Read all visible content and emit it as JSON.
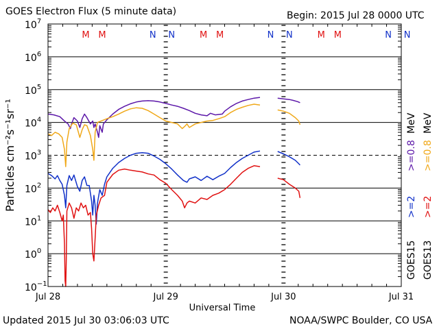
{
  "header": {
    "title": "GOES Electron Flux (5 minute data)",
    "begin": "Begin: 2015 Jul 28 0000 UTC"
  },
  "footer": {
    "updated": "Updated 2015 Jul 30 03:06:03 UTC",
    "credit": "NOAA/SWPC Boulder, CO USA"
  },
  "colors": {
    "ge2_goes15": "#5b16a8",
    "ge08_goes15": "#f0a818",
    "ge2_goes13": "#1030c8",
    "ge08_goes13": "#e01010",
    "marker_m": "#e01010",
    "marker_n": "#1030c8"
  },
  "chart_data": {
    "type": "line",
    "title": "GOES Electron Flux (5 minute data)",
    "xlabel": "Universal Time",
    "ylabel": "Particles cm⁻²s⁻¹sr⁻¹",
    "y_scale": "log",
    "ylim": [
      0.1,
      10000000
    ],
    "xlim_days": [
      0,
      3
    ],
    "x_ticks": [
      {
        "day": 0,
        "label": "Jul 28"
      },
      {
        "day": 1,
        "label": "Jul 29"
      },
      {
        "day": 2,
        "label": "Jul 30"
      },
      {
        "day": 3,
        "label": "Jul 31"
      }
    ],
    "y_ticks": [
      {
        "value": 0.1,
        "base": "10",
        "exp": "−1"
      },
      {
        "value": 1,
        "base": "10",
        "exp": "0"
      },
      {
        "value": 10,
        "base": "10",
        "exp": "1"
      },
      {
        "value": 100,
        "base": "10",
        "exp": "2"
      },
      {
        "value": 1000,
        "base": "10",
        "exp": "3"
      },
      {
        "value": 10000,
        "base": "10",
        "exp": "4"
      },
      {
        "value": 100000,
        "base": "10",
        "exp": "5"
      },
      {
        "value": 1000000,
        "base": "10",
        "exp": "6"
      },
      {
        "value": 10000000,
        "base": "10",
        "exp": "7"
      }
    ],
    "threshold_line": 1000,
    "local_noon_markers": [
      {
        "day": 0.32,
        "label": "M",
        "colorKey": "marker_m"
      },
      {
        "day": 0.46,
        "label": "M",
        "colorKey": "marker_m"
      },
      {
        "day": 0.89,
        "label": "N",
        "colorKey": "marker_n"
      },
      {
        "day": 1.05,
        "label": "N",
        "colorKey": "marker_n"
      },
      {
        "day": 1.32,
        "label": "M",
        "colorKey": "marker_m"
      },
      {
        "day": 1.46,
        "label": "M",
        "colorKey": "marker_m"
      },
      {
        "day": 1.89,
        "label": "N",
        "colorKey": "marker_n"
      },
      {
        "day": 2.05,
        "label": "N",
        "colorKey": "marker_n"
      },
      {
        "day": 2.32,
        "label": "M",
        "colorKey": "marker_m"
      },
      {
        "day": 2.46,
        "label": "M",
        "colorKey": "marker_m"
      },
      {
        "day": 2.89,
        "label": "N",
        "colorKey": "marker_n"
      },
      {
        "day": 3.05,
        "label": "N",
        "colorKey": "marker_n"
      }
    ],
    "legend": {
      "satellite_15": "GOES15",
      "satellite_13": "GOES13",
      "ge2_label": ">=2",
      "ge08_label": ">=0.8",
      "unit": "MeV"
    },
    "series": [
      {
        "name": ">=0.8 MeV GOES15",
        "colorKey": "ge2_goes15",
        "segments": [
          [
            [
              0.0,
              18000
            ],
            [
              0.05,
              17000
            ],
            [
              0.1,
              15000
            ],
            [
              0.14,
              11000
            ],
            [
              0.17,
              9000
            ],
            [
              0.19,
              6500
            ],
            [
              0.2,
              9000
            ],
            [
              0.22,
              14000
            ],
            [
              0.25,
              11000
            ],
            [
              0.27,
              7000
            ],
            [
              0.29,
              13000
            ],
            [
              0.31,
              18000
            ],
            [
              0.33,
              14000
            ],
            [
              0.36,
              9000
            ],
            [
              0.38,
              11000
            ],
            [
              0.39,
              7000
            ],
            [
              0.4,
              9000
            ],
            [
              0.42,
              5000
            ],
            [
              0.43,
              3500
            ],
            [
              0.44,
              8000
            ],
            [
              0.46,
              5000
            ],
            [
              0.47,
              9000
            ],
            [
              0.5,
              12000
            ],
            [
              0.55,
              18000
            ],
            [
              0.6,
              25000
            ],
            [
              0.65,
              31000
            ],
            [
              0.7,
              37000
            ],
            [
              0.75,
              42000
            ],
            [
              0.8,
              45000
            ],
            [
              0.85,
              46000
            ],
            [
              0.9,
              45000
            ],
            [
              0.95,
              42000
            ],
            [
              1.0,
              38000
            ],
            [
              1.05,
              34000
            ],
            [
              1.1,
              31000
            ],
            [
              1.15,
              27000
            ],
            [
              1.2,
              23000
            ],
            [
              1.25,
              19000
            ],
            [
              1.3,
              17000
            ],
            [
              1.35,
              16000
            ],
            [
              1.38,
              19000
            ],
            [
              1.42,
              17000
            ],
            [
              1.48,
              18000
            ],
            [
              1.5,
              22000
            ],
            [
              1.55,
              30000
            ],
            [
              1.6,
              38000
            ],
            [
              1.65,
              45000
            ],
            [
              1.7,
              50000
            ],
            [
              1.75,
              55000
            ],
            [
              1.8,
              58000
            ]
          ],
          [
            [
              1.95,
              55000
            ],
            [
              2.0,
              52000
            ],
            [
              2.05,
              50000
            ],
            [
              2.08,
              47000
            ],
            [
              2.12,
              43000
            ],
            [
              2.14,
              40000
            ]
          ]
        ]
      },
      {
        "name": ">=0.8 MeV GOES13",
        "colorKey": "ge08_goes15",
        "segments": [
          [
            [
              0.0,
              4500
            ],
            [
              0.03,
              4000
            ],
            [
              0.06,
              5000
            ],
            [
              0.09,
              4500
            ],
            [
              0.12,
              3500
            ],
            [
              0.14,
              1500
            ],
            [
              0.15,
              450
            ],
            [
              0.16,
              2500
            ],
            [
              0.18,
              6500
            ],
            [
              0.21,
              9500
            ],
            [
              0.24,
              8500
            ],
            [
              0.27,
              3500
            ],
            [
              0.29,
              6000
            ],
            [
              0.31,
              8500
            ],
            [
              0.33,
              8000
            ],
            [
              0.36,
              4000
            ],
            [
              0.38,
              1500
            ],
            [
              0.39,
              700
            ],
            [
              0.4,
              5000
            ],
            [
              0.42,
              10000
            ],
            [
              0.45,
              11000
            ],
            [
              0.5,
              13000
            ],
            [
              0.55,
              15000
            ],
            [
              0.6,
              18000
            ],
            [
              0.65,
              22000
            ],
            [
              0.7,
              26000
            ],
            [
              0.75,
              28000
            ],
            [
              0.8,
              27000
            ],
            [
              0.85,
              23000
            ],
            [
              0.9,
              18000
            ],
            [
              0.95,
              14000
            ],
            [
              1.0,
              11000
            ],
            [
              1.05,
              10000
            ],
            [
              1.1,
              9000
            ],
            [
              1.14,
              6500
            ],
            [
              1.16,
              7500
            ],
            [
              1.18,
              9000
            ],
            [
              1.2,
              7000
            ],
            [
              1.25,
              9000
            ],
            [
              1.3,
              10000
            ],
            [
              1.35,
              11000
            ],
            [
              1.4,
              11500
            ],
            [
              1.45,
              13000
            ],
            [
              1.5,
              15000
            ],
            [
              1.55,
              20000
            ],
            [
              1.6,
              25000
            ],
            [
              1.65,
              29000
            ],
            [
              1.7,
              33000
            ],
            [
              1.75,
              36000
            ],
            [
              1.8,
              34000
            ]
          ],
          [
            [
              1.95,
              24000
            ],
            [
              2.0,
              22000
            ],
            [
              2.05,
              19000
            ],
            [
              2.1,
              14000
            ],
            [
              2.13,
              11000
            ],
            [
              2.14,
              8500
            ]
          ]
        ]
      },
      {
        "name": ">=2 MeV GOES15",
        "colorKey": "ge2_goes13",
        "segments": [
          [
            [
              0.0,
              280
            ],
            [
              0.03,
              240
            ],
            [
              0.06,
              190
            ],
            [
              0.08,
              240
            ],
            [
              0.1,
              170
            ],
            [
              0.12,
              130
            ],
            [
              0.14,
              60
            ],
            [
              0.15,
              25
            ],
            [
              0.16,
              120
            ],
            [
              0.18,
              240
            ],
            [
              0.2,
              170
            ],
            [
              0.22,
              250
            ],
            [
              0.25,
              110
            ],
            [
              0.27,
              80
            ],
            [
              0.29,
              170
            ],
            [
              0.31,
              220
            ],
            [
              0.33,
              120
            ],
            [
              0.35,
              120
            ],
            [
              0.37,
              40
            ],
            [
              0.38,
              15
            ],
            [
              0.39,
              60
            ],
            [
              0.4,
              30
            ],
            [
              0.41,
              8
            ],
            [
              0.42,
              35
            ],
            [
              0.44,
              90
            ],
            [
              0.46,
              60
            ],
            [
              0.48,
              130
            ],
            [
              0.5,
              220
            ],
            [
              0.55,
              400
            ],
            [
              0.6,
              600
            ],
            [
              0.65,
              800
            ],
            [
              0.7,
              1000
            ],
            [
              0.75,
              1150
            ],
            [
              0.8,
              1200
            ],
            [
              0.85,
              1150
            ],
            [
              0.9,
              950
            ],
            [
              0.95,
              750
            ],
            [
              1.0,
              550
            ],
            [
              1.05,
              380
            ],
            [
              1.1,
              250
            ],
            [
              1.15,
              170
            ],
            [
              1.18,
              150
            ],
            [
              1.2,
              190
            ],
            [
              1.25,
              220
            ],
            [
              1.3,
              170
            ],
            [
              1.35,
              230
            ],
            [
              1.4,
              180
            ],
            [
              1.45,
              230
            ],
            [
              1.5,
              280
            ],
            [
              1.55,
              420
            ],
            [
              1.6,
              600
            ],
            [
              1.65,
              800
            ],
            [
              1.7,
              1000
            ],
            [
              1.75,
              1250
            ],
            [
              1.8,
              1350
            ]
          ],
          [
            [
              1.95,
              1300
            ],
            [
              2.0,
              1100
            ],
            [
              2.05,
              900
            ],
            [
              2.1,
              700
            ],
            [
              2.13,
              550
            ],
            [
              2.14,
              500
            ]
          ]
        ]
      },
      {
        "name": ">=2 MeV GOES13",
        "colorKey": "ge08_goes13",
        "segments": [
          [
            [
              0.0,
              22
            ],
            [
              0.02,
              18
            ],
            [
              0.04,
              25
            ],
            [
              0.06,
              20
            ],
            [
              0.08,
              30
            ],
            [
              0.1,
              18
            ],
            [
              0.12,
              10
            ],
            [
              0.13,
              15
            ],
            [
              0.14,
              2
            ],
            [
              0.145,
              0.15
            ],
            [
              0.15,
              0.1
            ],
            [
              0.155,
              0.6
            ],
            [
              0.16,
              20
            ],
            [
              0.18,
              35
            ],
            [
              0.2,
              25
            ],
            [
              0.22,
              12
            ],
            [
              0.24,
              25
            ],
            [
              0.26,
              20
            ],
            [
              0.28,
              35
            ],
            [
              0.3,
              25
            ],
            [
              0.32,
              30
            ],
            [
              0.34,
              15
            ],
            [
              0.36,
              18
            ],
            [
              0.37,
              6
            ],
            [
              0.38,
              1
            ],
            [
              0.39,
              0.6
            ],
            [
              0.4,
              3
            ],
            [
              0.41,
              15
            ],
            [
              0.43,
              30
            ],
            [
              0.45,
              50
            ],
            [
              0.48,
              60
            ],
            [
              0.5,
              150
            ],
            [
              0.55,
              260
            ],
            [
              0.6,
              350
            ],
            [
              0.65,
              380
            ],
            [
              0.7,
              350
            ],
            [
              0.75,
              330
            ],
            [
              0.8,
              310
            ],
            [
              0.85,
              270
            ],
            [
              0.9,
              250
            ],
            [
              0.95,
              180
            ],
            [
              1.0,
              140
            ],
            [
              1.05,
              90
            ],
            [
              1.1,
              60
            ],
            [
              1.14,
              40
            ],
            [
              1.16,
              25
            ],
            [
              1.18,
              35
            ],
            [
              1.2,
              40
            ],
            [
              1.25,
              35
            ],
            [
              1.3,
              50
            ],
            [
              1.35,
              45
            ],
            [
              1.4,
              60
            ],
            [
              1.45,
              70
            ],
            [
              1.5,
              90
            ],
            [
              1.55,
              130
            ],
            [
              1.6,
              200
            ],
            [
              1.65,
              300
            ],
            [
              1.7,
              400
            ],
            [
              1.75,
              480
            ],
            [
              1.8,
              450
            ]
          ],
          [
            [
              1.95,
              200
            ],
            [
              2.0,
              180
            ],
            [
              2.05,
              130
            ],
            [
              2.1,
              100
            ],
            [
              2.13,
              80
            ],
            [
              2.14,
              50
            ]
          ]
        ]
      }
    ]
  }
}
